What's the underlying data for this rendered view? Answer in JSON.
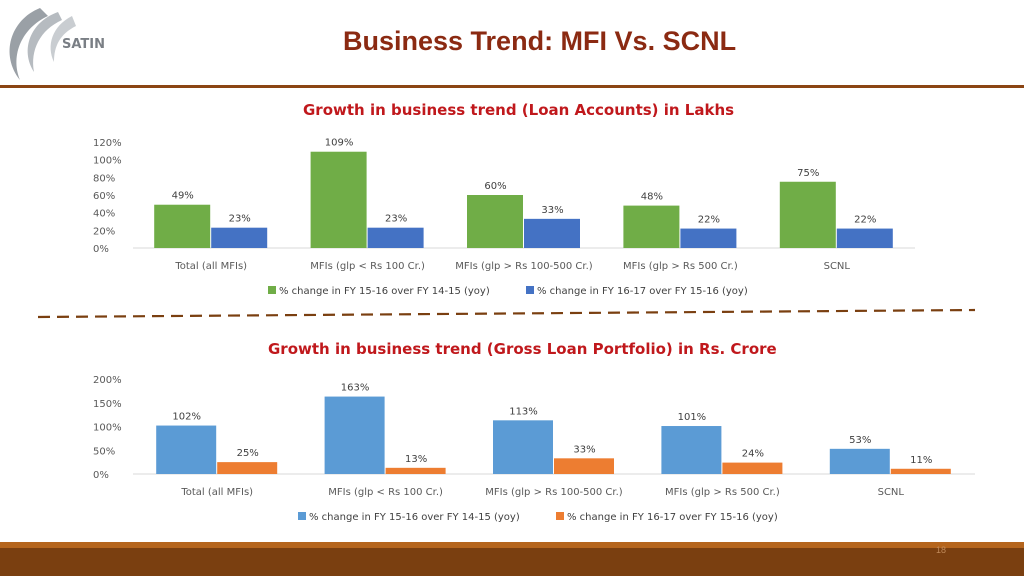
{
  "header": {
    "logo_text": "SATIN",
    "title": "Business Trend: MFI Vs. SCNL"
  },
  "colors": {
    "green": "#70AD47",
    "blue_dark": "#4472C4",
    "blue_light": "#5B9BD5",
    "orange": "#ED7D31",
    "title_brown": "#8B2A12",
    "chart_title_red": "#C0181C"
  },
  "chart_data": [
    {
      "type": "bar",
      "title": "Growth in business trend (Loan Accounts) in Lakhs",
      "categories": [
        "Total (all MFIs)",
        "MFIs (glp < Rs 100 Cr.)",
        "MFIs (glp > Rs 100-500 Cr.)",
        "MFIs (glp > Rs 500 Cr.)",
        "SCNL"
      ],
      "series": [
        {
          "name": "% change in FY 15-16 over FY 14-15 (yoy)",
          "values": [
            49,
            109,
            60,
            48,
            75
          ],
          "labels": [
            "49%",
            "109%",
            "60%",
            "48%",
            "75%"
          ],
          "color": "#70AD47"
        },
        {
          "name": "% change in FY 16-17 over FY 15-16 (yoy)",
          "values": [
            23,
            23,
            33,
            22,
            22
          ],
          "labels": [
            "23%",
            "23%",
            "33%",
            "22%",
            "22%"
          ],
          "color": "#4472C4"
        }
      ],
      "ylim": [
        0,
        120
      ],
      "yticks": [
        0,
        20,
        40,
        60,
        80,
        100,
        120
      ],
      "ytick_labels": [
        "0%",
        "20%",
        "40%",
        "60%",
        "80%",
        "100%",
        "120%"
      ],
      "legend_position": "bottom",
      "grid": false
    },
    {
      "type": "bar",
      "title": "Growth in business trend (Gross Loan Portfolio) in Rs. Crore",
      "categories": [
        "Total (all MFIs)",
        "MFIs (glp < Rs 100 Cr.)",
        "MFIs (glp > Rs 100-500 Cr.)",
        "MFIs (glp > Rs 500 Cr.)",
        "SCNL"
      ],
      "series": [
        {
          "name": "% change in FY 15-16 over FY 14-15 (yoy)",
          "values": [
            102,
            163,
            113,
            101,
            53
          ],
          "labels": [
            "102%",
            "163%",
            "113%",
            "101%",
            "53%"
          ],
          "color": "#5B9BD5"
        },
        {
          "name": "% change in FY 16-17 over FY 15-16 (yoy)",
          "values": [
            25,
            13,
            33,
            24,
            11
          ],
          "labels": [
            "25%",
            "13%",
            "33%",
            "24%",
            "11%"
          ],
          "color": "#ED7D31"
        }
      ],
      "ylim": [
        0,
        200
      ],
      "yticks": [
        0,
        50,
        100,
        150,
        200
      ],
      "ytick_labels": [
        "0%",
        "50%",
        "100%",
        "150%",
        "200%"
      ],
      "legend_position": "bottom",
      "grid": false
    }
  ],
  "footer": {
    "page_number": "18"
  }
}
